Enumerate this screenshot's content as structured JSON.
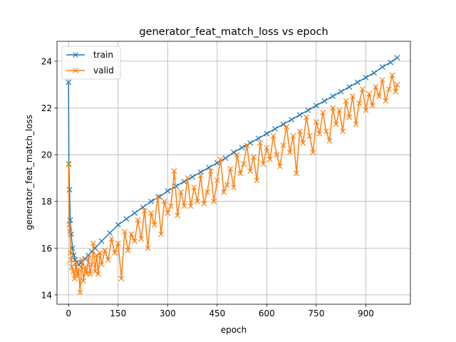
{
  "chart_data": {
    "type": "line",
    "title": "generator_feat_match_loss vs epoch",
    "xlabel": "epoch",
    "ylabel": "generator_feat_match_loss",
    "xlim": [
      -35,
      1035
    ],
    "ylim": [
      13.6,
      24.85
    ],
    "xticks": [
      0,
      150,
      300,
      450,
      600,
      750,
      900
    ],
    "yticks": [
      14,
      16,
      18,
      20,
      22,
      24
    ],
    "grid": true,
    "legend_position": "top-left",
    "series": [
      {
        "name": "train",
        "color": "#1f77b4",
        "marker": "x",
        "x": [
          0,
          1,
          3,
          5,
          8,
          12,
          16,
          20,
          25,
          30,
          40,
          50,
          60,
          70,
          80,
          100,
          125,
          150,
          175,
          200,
          225,
          250,
          275,
          300,
          325,
          350,
          375,
          400,
          425,
          450,
          475,
          500,
          525,
          550,
          575,
          600,
          625,
          650,
          675,
          700,
          725,
          750,
          775,
          800,
          825,
          850,
          875,
          900,
          925,
          950,
          975,
          995
        ],
        "y": [
          23.1,
          19.6,
          18.5,
          17.2,
          16.6,
          16.0,
          15.7,
          15.5,
          15.35,
          15.3,
          15.4,
          15.55,
          15.7,
          15.85,
          16.0,
          16.3,
          16.65,
          17.0,
          17.25,
          17.5,
          17.75,
          18.0,
          18.2,
          18.45,
          18.65,
          18.85,
          19.05,
          19.25,
          19.45,
          19.65,
          19.85,
          20.1,
          20.3,
          20.5,
          20.7,
          20.9,
          21.1,
          21.3,
          21.5,
          21.7,
          21.9,
          22.1,
          22.3,
          22.5,
          22.7,
          22.9,
          23.1,
          23.3,
          23.5,
          23.75,
          23.95,
          24.15
        ]
      },
      {
        "name": "valid",
        "color": "#ff7f0e",
        "marker": "x",
        "x": [
          0,
          2,
          4,
          6,
          8,
          10,
          14,
          18,
          22,
          26,
          30,
          35,
          40,
          45,
          50,
          55,
          60,
          65,
          70,
          75,
          80,
          85,
          90,
          95,
          100,
          110,
          120,
          130,
          140,
          150,
          160,
          170,
          180,
          190,
          200,
          210,
          220,
          230,
          240,
          250,
          260,
          270,
          280,
          290,
          300,
          310,
          320,
          330,
          340,
          350,
          360,
          370,
          380,
          390,
          400,
          410,
          420,
          430,
          440,
          450,
          460,
          470,
          480,
          490,
          500,
          510,
          520,
          530,
          540,
          550,
          560,
          570,
          580,
          590,
          600,
          610,
          620,
          630,
          640,
          650,
          660,
          670,
          680,
          690,
          700,
          710,
          720,
          730,
          740,
          750,
          760,
          770,
          780,
          790,
          800,
          810,
          820,
          830,
          840,
          850,
          860,
          870,
          880,
          890,
          900,
          910,
          920,
          930,
          940,
          950,
          960,
          970,
          980,
          990,
          995
        ],
        "y": [
          19.6,
          17.0,
          16.7,
          15.8,
          15.5,
          15.2,
          15.0,
          14.7,
          15.4,
          14.8,
          15.1,
          14.1,
          15.5,
          14.6,
          15.2,
          14.9,
          15.6,
          14.9,
          15.3,
          16.2,
          15.0,
          15.7,
          14.9,
          15.8,
          15.3,
          15.9,
          15.5,
          16.4,
          15.8,
          16.2,
          14.7,
          16.7,
          15.9,
          16.6,
          16.3,
          17.2,
          16.4,
          17.6,
          16.0,
          17.5,
          17.0,
          18.2,
          16.6,
          18.0,
          17.5,
          17.8,
          19.3,
          17.4,
          18.4,
          17.8,
          19.0,
          17.8,
          18.6,
          18.0,
          19.1,
          17.9,
          18.4,
          19.3,
          18.0,
          18.9,
          19.8,
          18.4,
          18.7,
          19.4,
          18.6,
          20.0,
          19.2,
          19.6,
          20.4,
          19.3,
          19.9,
          18.9,
          20.5,
          19.6,
          20.3,
          19.8,
          20.8,
          20.0,
          19.5,
          20.4,
          21.2,
          20.1,
          20.8,
          19.2,
          21.0,
          20.5,
          21.6,
          20.8,
          20.1,
          21.4,
          20.9,
          21.8,
          21.0,
          20.6,
          22.0,
          21.3,
          21.9,
          21.0,
          22.3,
          21.6,
          22.5,
          21.3,
          22.2,
          22.8,
          21.9,
          22.6,
          22.1,
          22.9,
          22.5,
          23.2,
          22.3,
          22.8,
          23.4,
          22.7,
          23.0
        ]
      }
    ]
  }
}
